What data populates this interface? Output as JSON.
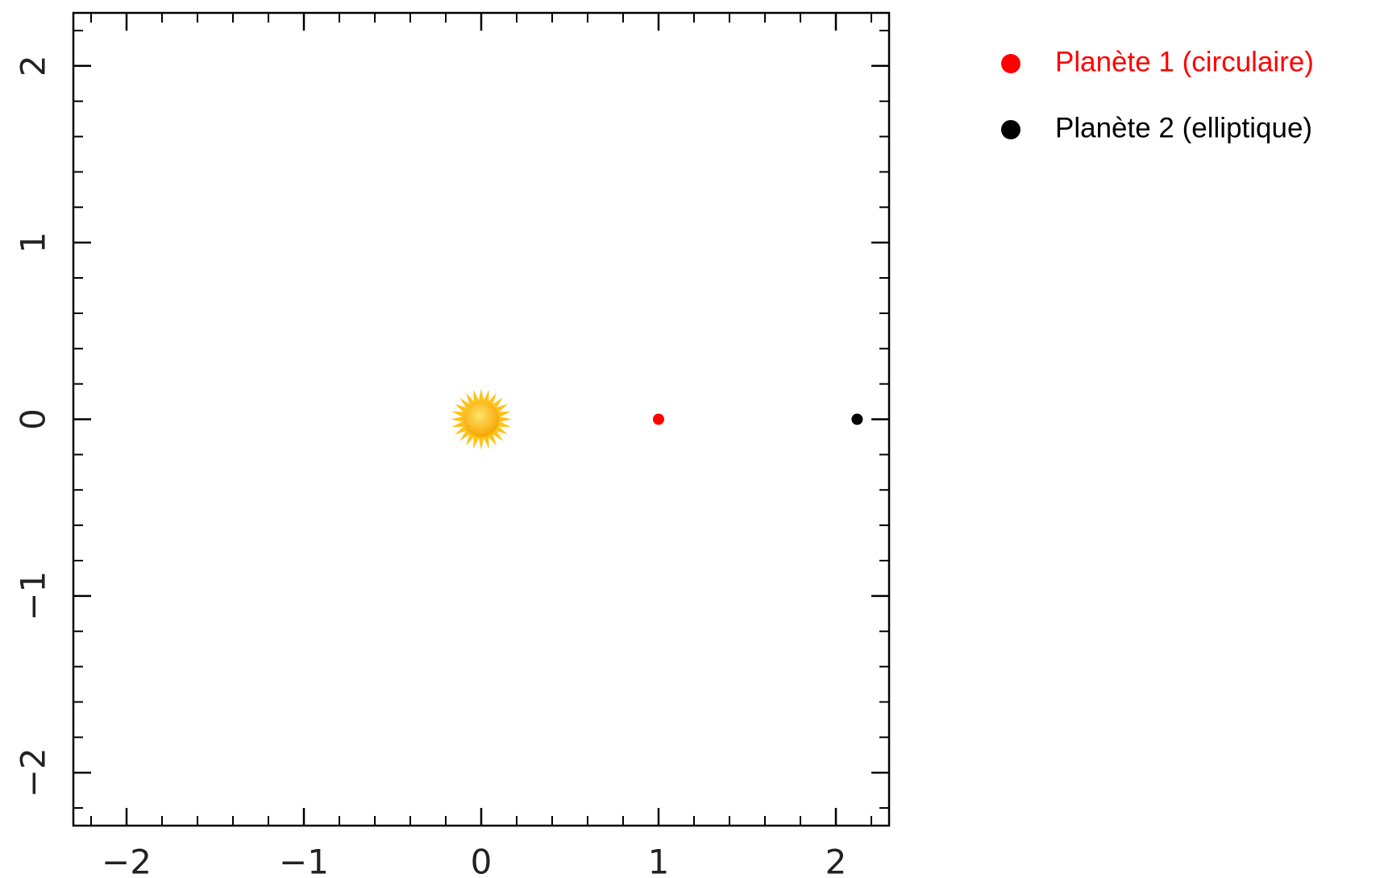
{
  "chart_data": {
    "type": "scatter",
    "xlim": [
      -2.3,
      2.3
    ],
    "ylim": [
      -2.3,
      2.3
    ],
    "xticks": [
      {
        "value": -2,
        "label": "−2"
      },
      {
        "value": -1,
        "label": "−1"
      },
      0,
      1,
      2
    ],
    "yticks": [
      {
        "value": -2,
        "label": "−2"
      },
      {
        "value": -1,
        "label": "−1"
      },
      0,
      1,
      2
    ],
    "minor_per_major": 5,
    "star": {
      "x": 0,
      "y": 0,
      "color": "#ffc21a"
    },
    "series": [
      {
        "name": "Planète 1 (circulaire)",
        "color": "#ff0000",
        "x": [
          1
        ],
        "y": [
          0
        ]
      },
      {
        "name": "Planète 2 (elliptique)",
        "color": "#000000",
        "x": [
          2.12
        ],
        "y": [
          0
        ]
      }
    ],
    "legend": "top-right"
  }
}
